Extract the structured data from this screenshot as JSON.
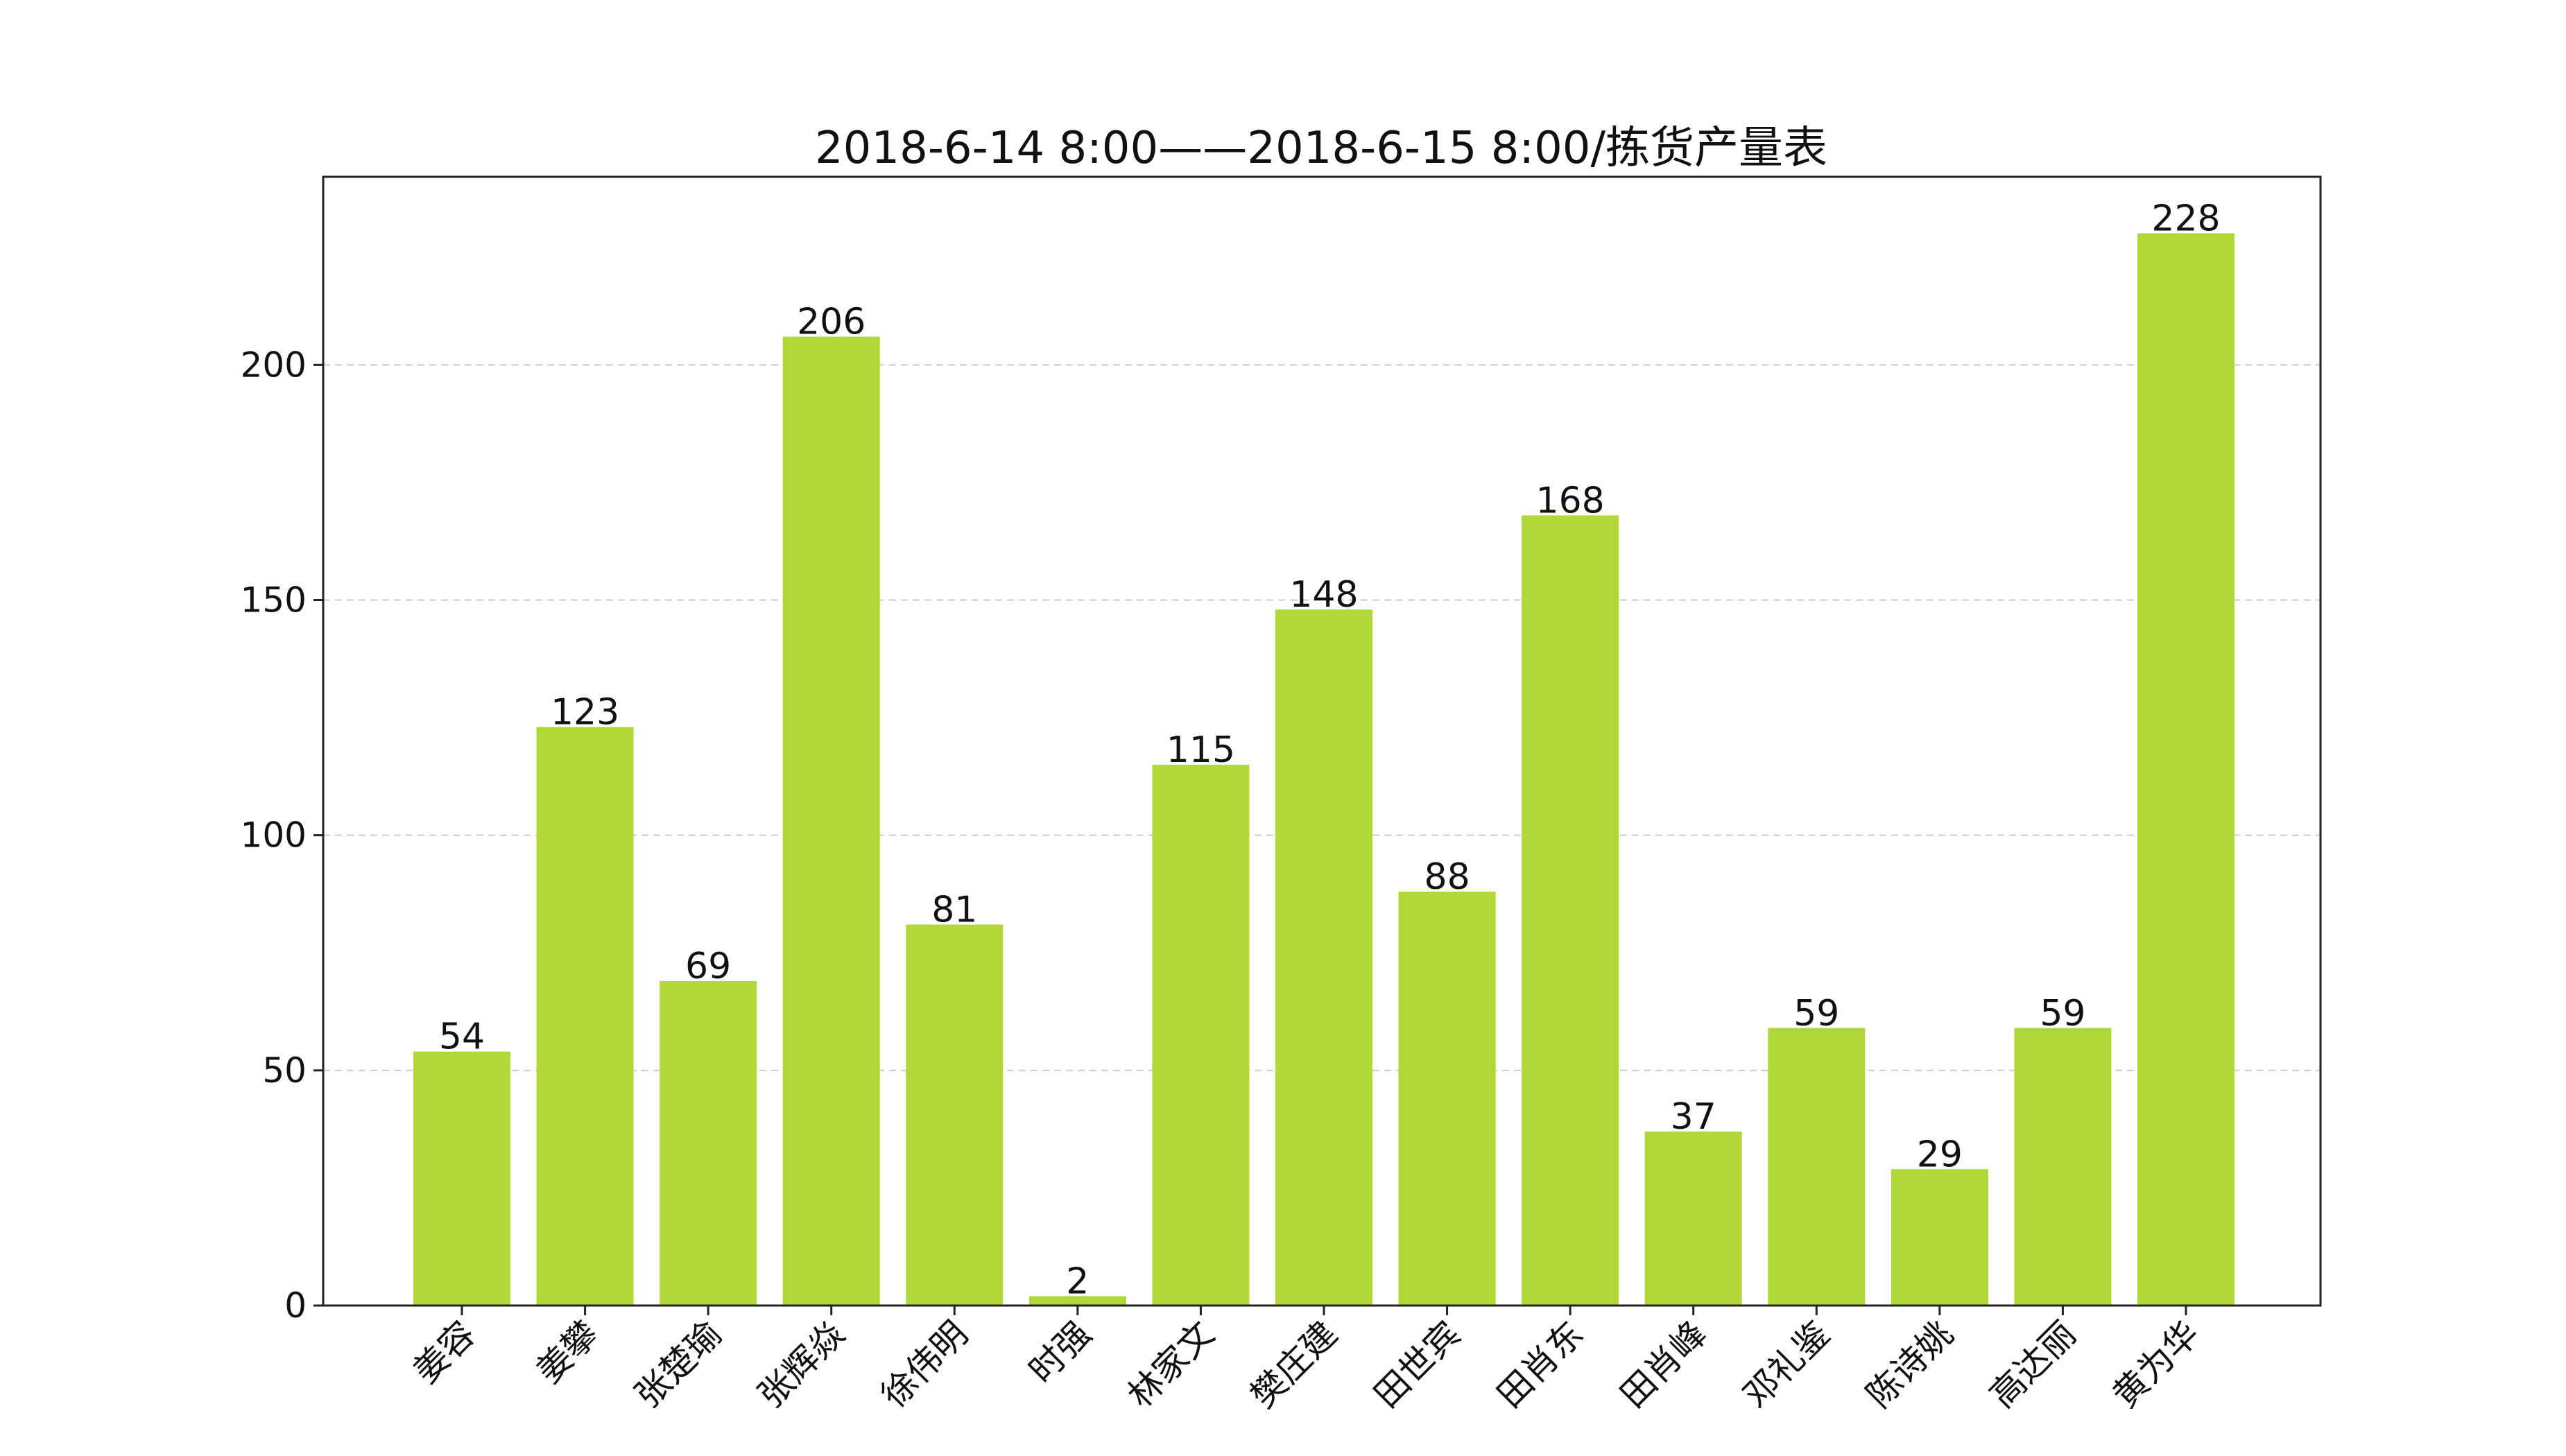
{
  "chart_data": {
    "type": "bar",
    "title": "2018-6-14 8:00——2018-6-15 8:00/拣货产量表",
    "xlabel": "",
    "ylabel": "",
    "categories": [
      "姜容",
      "姜攀",
      "张楚瑜",
      "张辉焱",
      "徐伟明",
      "时强",
      "林家文",
      "樊庄建",
      "田世宾",
      "田肖东",
      "田肖峰",
      "邓礼鉴",
      "陈诗姚",
      "高达丽",
      "黄为华"
    ],
    "values": [
      54,
      123,
      69,
      206,
      81,
      2,
      115,
      148,
      88,
      168,
      37,
      59,
      29,
      59,
      228
    ],
    "ylim": [
      0,
      240
    ],
    "yticks": [
      0,
      50,
      100,
      150,
      200
    ],
    "bar_color": "#add835",
    "grid": "y-dashed",
    "legend": "none"
  }
}
